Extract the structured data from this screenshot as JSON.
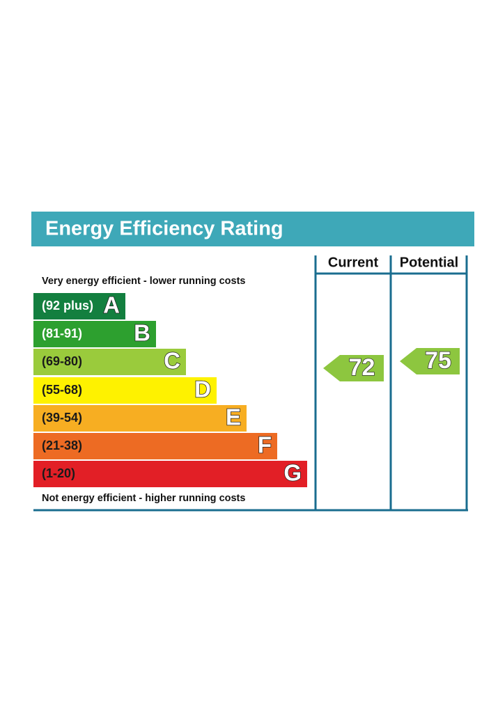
{
  "title": "Energy Efficiency Rating",
  "title_color": "#3ea8b8",
  "columns": [
    "Current",
    "Potential"
  ],
  "top_note": "Very energy efficient - lower running costs",
  "bottom_note": "Not energy efficient - higher running costs",
  "bands": [
    {
      "range": "(92 plus)",
      "letter": "A",
      "color": "#137f3f",
      "text_color": "#ffffff"
    },
    {
      "range": "(81-91)",
      "letter": "B",
      "color": "#2da02f",
      "text_color": "#ffffff"
    },
    {
      "range": "(69-80)",
      "letter": "C",
      "color": "#9acb3c",
      "text_color": "#1a1a1a"
    },
    {
      "range": "(55-68)",
      "letter": "D",
      "color": "#fef200",
      "text_color": "#1a1a1a"
    },
    {
      "range": "(39-54)",
      "letter": "E",
      "color": "#f7ae22",
      "text_color": "#1a1a1a"
    },
    {
      "range": "(21-38)",
      "letter": "F",
      "color": "#ed6b23",
      "text_color": "#1a1a1a"
    },
    {
      "range": "(1-20)",
      "letter": "G",
      "color": "#e21f26",
      "text_color": "#1a1a1a"
    }
  ],
  "current": {
    "value": 72,
    "color": "#8dc63f"
  },
  "potential": {
    "value": 75,
    "color": "#8dc63f"
  }
}
